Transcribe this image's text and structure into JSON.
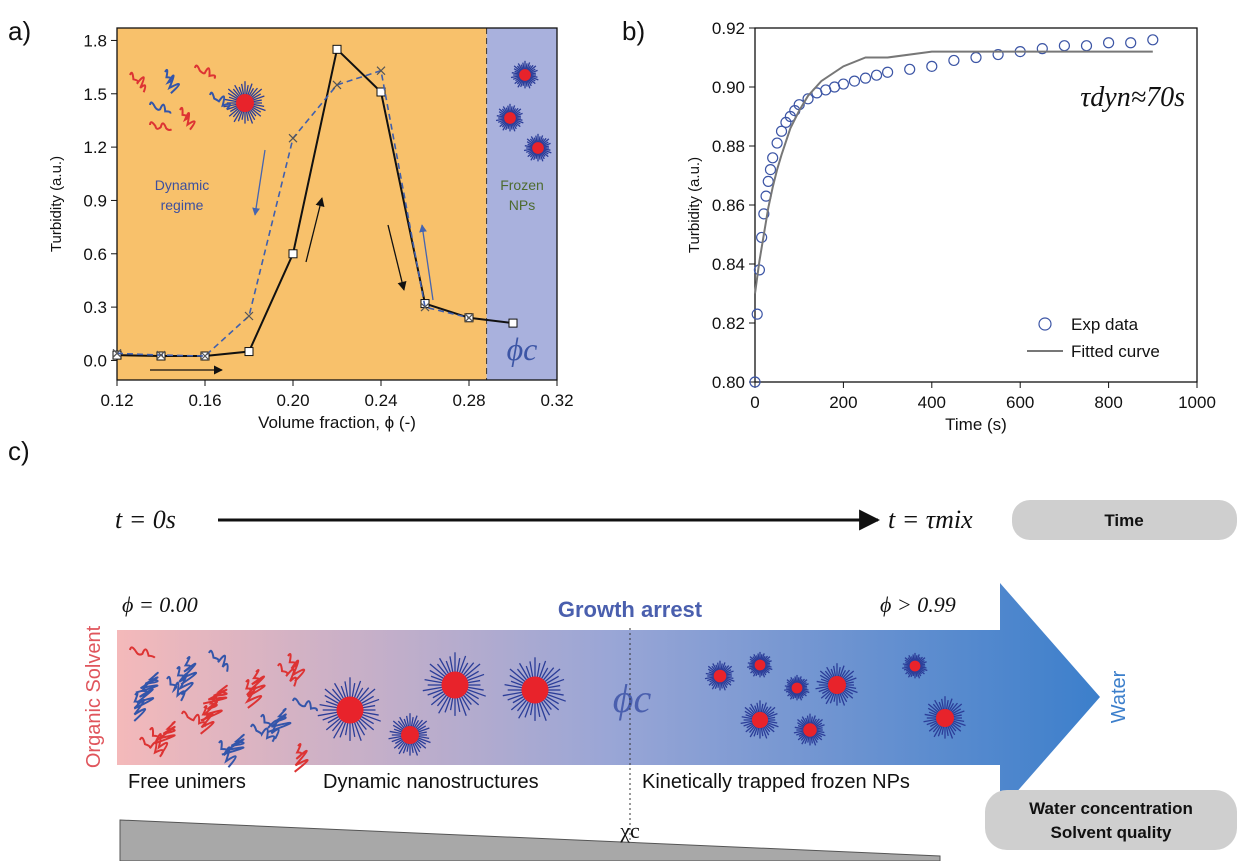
{
  "chart_data": [
    {
      "type": "line",
      "panel_label": "a)",
      "x_label": "Volume fraction, ϕ (-)",
      "y_label": "Turbidity (a.u.)",
      "dynamic_label": [
        "Dynamic",
        "regime"
      ],
      "frozen_label": [
        "Frozen",
        "NPs"
      ],
      "critical_label": "ϕc",
      "boundary": 0.288,
      "region_colors": [
        "#f8c16b",
        "#a9b1dd"
      ],
      "xlim": [
        0.12,
        0.32
      ],
      "xticks": [
        0.12,
        0.16,
        {
          "value": 0.2,
          "label": "0.20"
        },
        0.24,
        0.28,
        0.32
      ],
      "ylim": [
        -0.11,
        1.87
      ],
      "yticks": [
        {
          "value": 0,
          "label": "0.0"
        },
        0.3,
        0.6,
        0.9,
        1.2,
        1.5,
        1.8
      ],
      "series": [
        {
          "color": "#111111",
          "line_style": "solid",
          "marker": "square",
          "x": [
            0.12,
            0.14,
            0.16,
            0.18,
            0.2,
            0.22,
            0.24,
            0.26,
            0.28,
            0.3
          ],
          "values": [
            0.03,
            0.025,
            0.025,
            0.05,
            0.6,
            1.75,
            1.51,
            0.32,
            0.24,
            0.21
          ]
        },
        {
          "color": "#3f5fae",
          "line_style": "dashed",
          "marker": "x",
          "x": [
            0.12,
            0.14,
            0.16,
            0.18,
            0.2,
            0.22,
            0.24,
            0.26,
            0.28
          ],
          "values": [
            0.04,
            0.03,
            0.025,
            0.25,
            1.25,
            1.55,
            1.63,
            0.3,
            0.24
          ]
        }
      ]
    },
    {
      "type": "scatter",
      "panel_label": "b)",
      "x_label": "Time (s)",
      "y_label": "Turbidity (a.u.)",
      "annotation": "τdyn≈70s",
      "legend": "lower right",
      "xlim": [
        0,
        1000
      ],
      "xticks": [
        0,
        200,
        400,
        600,
        800,
        1000
      ],
      "ylim": [
        0.8,
        0.92
      ],
      "yticks": [
        {
          "value": 0.8,
          "label": "0.80"
        },
        0.82,
        0.84,
        0.86,
        0.88,
        {
          "value": 0.9,
          "label": "0.90"
        },
        0.92
      ],
      "series": [
        {
          "name": "Exp data",
          "color": "#3c55a5",
          "line_style": "none",
          "marker": "circle",
          "x": [
            0,
            5,
            10,
            15,
            20,
            25,
            30,
            35,
            40,
            50,
            60,
            70,
            80,
            90,
            100,
            120,
            140,
            160,
            180,
            200,
            225,
            250,
            275,
            300,
            350,
            400,
            450,
            500,
            550,
            600,
            650,
            700,
            750,
            800,
            850,
            900
          ],
          "values": [
            0.8,
            0.823,
            0.838,
            0.849,
            0.857,
            0.863,
            0.868,
            0.872,
            0.876,
            0.881,
            0.885,
            0.888,
            0.89,
            0.892,
            0.894,
            0.896,
            0.898,
            0.899,
            0.9,
            0.901,
            0.902,
            0.903,
            0.904,
            0.905,
            0.906,
            0.907,
            0.909,
            0.91,
            0.911,
            0.912,
            0.913,
            0.914,
            0.914,
            0.915,
            0.915,
            0.916
          ]
        },
        {
          "name": "Fitted curve",
          "color": "#777777",
          "line_style": "solid",
          "marker": "none",
          "x": [
            0,
            10,
            20,
            30,
            40,
            50,
            60,
            80,
            100,
            120,
            150,
            200,
            250,
            300,
            400,
            500,
            600,
            700,
            800,
            900
          ],
          "values": [
            0.83,
            0.841,
            0.85,
            0.859,
            0.866,
            0.872,
            0.877,
            0.886,
            0.892,
            0.897,
            0.902,
            0.907,
            0.91,
            0.91,
            0.912,
            0.912,
            0.912,
            0.912,
            0.912,
            0.912
          ]
        }
      ]
    }
  ],
  "diagram": {
    "panel_label": "c)",
    "time_start": "t = 0s",
    "time_end": "t = τmix",
    "time_box": "Time",
    "phi_start": "ϕ = 0.00",
    "growth_arrest": "Growth arrest",
    "phi_end": "ϕ > 0.99",
    "left_label": "Organic Solvent",
    "right_label": "Water",
    "critical": "ϕc",
    "stage_1": "Free unimers",
    "stage_2": "Dynamic nanostructures",
    "stage_3": "Kinetically trapped frozen NPs",
    "quality_box": [
      "Water concentration",
      "Solvent quality"
    ],
    "chi": "χc"
  }
}
